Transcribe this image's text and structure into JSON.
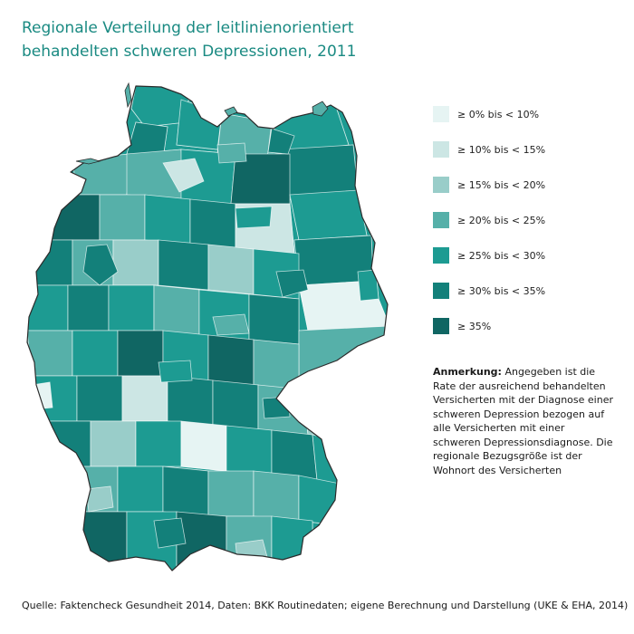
{
  "title": {
    "line1": "Regionale Verteilung der leitlinienorientiert",
    "line2": "behandelten schweren Depressionen, 2011"
  },
  "legend": [
    {
      "label": "≥ 0% bis < 10%",
      "color": "#e6f4f3"
    },
    {
      "label": "≥ 10% bis < 15%",
      "color": "#cce6e4"
    },
    {
      "label": "≥ 15% bis < 20%",
      "color": "#99cdc9"
    },
    {
      "label": "≥ 20% bis < 25%",
      "color": "#56b0a9"
    },
    {
      "label": "≥ 25% bis < 30%",
      "color": "#1d9b92"
    },
    {
      "label": "≥ 30% bis < 35%",
      "color": "#13807a"
    },
    {
      "label": "≥ 35%",
      "color": "#106663"
    }
  ],
  "note": {
    "heading": "Anmerkung:",
    "text": "Angegeben ist die Rate der ausreichend behandelten Versicherten mit der Diagnose einer schweren Depression bezogen auf alle Versicherten mit einer schweren Depressionsdiagnose. Die regionale Bezugsgröße ist der Wohnort des Versicherten"
  },
  "source": "Quelle: Faktencheck Gesundheit 2014, Daten: BKK Routinedaten; eigene Berechnung und Darstellung (UKE & EHA, 2014)"
}
